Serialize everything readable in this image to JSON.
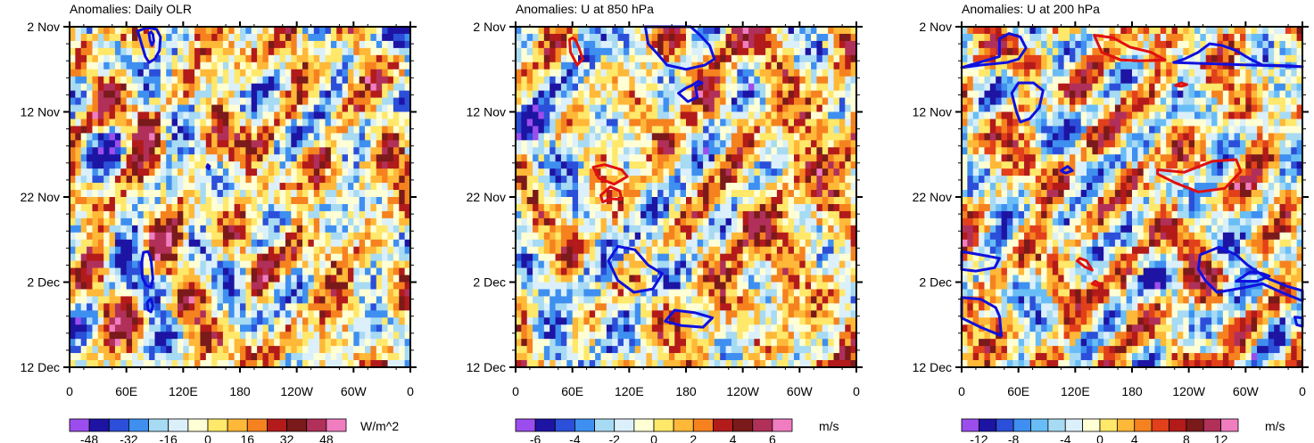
{
  "chart_data": [
    {
      "type": "heatmap",
      "title": "Anomalies: Daily OLR",
      "x_ticks": [
        "0",
        "60E",
        "120E",
        "180",
        "120W",
        "60W",
        "0"
      ],
      "y_ticks": [
        "2 Nov",
        "12 Nov",
        "22 Nov",
        "2 Dec",
        "12 Dec"
      ],
      "colorbar": {
        "ticks": [
          "-48",
          "-32",
          "-16",
          "0",
          "16",
          "32",
          "48"
        ],
        "units": "W/m^2",
        "levels": 14,
        "range": [
          -56,
          56
        ]
      },
      "contours": [
        {
          "color": "#1010dd",
          "points": [
            [
              72,
              0.5
            ],
            [
              76,
              2
            ],
            [
              80,
              3.5
            ],
            [
              84,
              4.2
            ],
            [
              90,
              3.8
            ],
            [
              95,
              2.8
            ],
            [
              96,
              1.2
            ],
            [
              92,
              0.3
            ],
            [
              82,
              0.1
            ]
          ]
        },
        {
          "color": "#1010dd",
          "points": [
            [
              84,
              0.8
            ],
            [
              85,
              1.6
            ],
            [
              87,
              2.2
            ],
            [
              89,
              1.7
            ],
            [
              88,
              0.9
            ],
            [
              86,
              0.6
            ]
          ]
        },
        {
          "color": "#1010dd",
          "points": [
            [
              78,
              26.5
            ],
            [
              76,
              27.8
            ],
            [
              77,
              29.5
            ],
            [
              81,
              30.4
            ],
            [
              86,
              30.6
            ],
            [
              88,
              29.6
            ],
            [
              86,
              27.3
            ],
            [
              83,
              26.4
            ]
          ]
        },
        {
          "color": "#1010dd",
          "points": [
            [
              82,
              32.4
            ],
            [
              83,
              33.3
            ],
            [
              86,
              33.5
            ],
            [
              88,
              32.8
            ],
            [
              86,
              32
            ],
            [
              84,
              32.1
            ]
          ]
        },
        {
          "color": "#1010dd",
          "points": [
            [
              145,
              16.5
            ],
            [
              147,
              16.7
            ],
            [
              148,
              16.4
            ],
            [
              146,
              16.2
            ]
          ]
        }
      ]
    },
    {
      "type": "heatmap",
      "title": "Anomalies: U at 850 hPa",
      "x_ticks": [
        "0",
        "60E",
        "120E",
        "180",
        "120W",
        "60W",
        "0"
      ],
      "y_ticks": [
        "2 Nov",
        "12 Nov",
        "22 Nov",
        "2 Dec",
        "12 Dec"
      ],
      "colorbar": {
        "ticks": [
          "-6",
          "-4",
          "-2",
          "0",
          "2",
          "4",
          "6"
        ],
        "units": "m/s",
        "levels": 14,
        "range": [
          -7,
          7
        ]
      },
      "contours": [
        {
          "color": "#e01010",
          "points": [
            [
              57,
              1.5
            ],
            [
              58,
              3
            ],
            [
              65,
              4.5
            ],
            [
              71,
              3.8
            ],
            [
              67,
              2.5
            ],
            [
              63,
              1.5
            ],
            [
              60,
              1.3
            ]
          ]
        },
        {
          "color": "#1010dd",
          "points": [
            [
              137,
              0
            ],
            [
              140,
              2
            ],
            [
              150,
              3.2
            ],
            [
              160,
              4.5
            ],
            [
              180,
              5
            ],
            [
              200,
              4.5
            ],
            [
              210,
              3.8
            ],
            [
              205,
              2.2
            ],
            [
              195,
              1
            ],
            [
              185,
              0
            ]
          ]
        },
        {
          "color": "#1010dd",
          "points": [
            [
              172,
              7.8
            ],
            [
              182,
              8.8
            ],
            [
              192,
              8.3
            ],
            [
              190,
              7
            ],
            [
              197,
              6.6
            ],
            [
              193,
              6.4
            ],
            [
              186,
              6.9
            ],
            [
              180,
              7.2
            ]
          ]
        },
        {
          "color": "#e01010",
          "points": [
            [
              82,
              16.5
            ],
            [
              88,
              17.8
            ],
            [
              104,
              18.5
            ],
            [
              118,
              17.6
            ],
            [
              112,
              16.8
            ],
            [
              94,
              16.2
            ]
          ]
        },
        {
          "color": "#e01010",
          "points": [
            [
              90,
              19.8
            ],
            [
              100,
              18.8
            ],
            [
              110,
              19.3
            ],
            [
              112,
              20.3
            ],
            [
              100,
              20.2
            ],
            [
              92,
              20.6
            ]
          ]
        },
        {
          "color": "#1010dd",
          "points": [
            [
              98,
              27.5
            ],
            [
              108,
              25.8
            ],
            [
              126,
              26.2
            ],
            [
              140,
              28
            ],
            [
              155,
              29
            ],
            [
              145,
              30.8
            ],
            [
              125,
              31.2
            ],
            [
              108,
              29.8
            ]
          ]
        },
        {
          "color": "#1010dd",
          "points": [
            [
              158,
              34.6
            ],
            [
              168,
              33.3
            ],
            [
              190,
              33.6
            ],
            [
              208,
              34.2
            ],
            [
              198,
              35.3
            ],
            [
              175,
              35.1
            ]
          ]
        }
      ]
    },
    {
      "type": "heatmap",
      "title": "Anomalies: U at 200 hPa",
      "x_ticks": [
        "0",
        "60E",
        "120E",
        "180",
        "120W",
        "60W",
        "0"
      ],
      "y_ticks": [
        "2 Nov",
        "12 Nov",
        "22 Nov",
        "2 Dec",
        "12 Dec"
      ],
      "colorbar": {
        "ticks": [
          "-12",
          "-8",
          "-4",
          "0",
          "4",
          "8",
          "12"
        ],
        "units": "m/s",
        "levels": 16,
        "range": [
          -16,
          16
        ]
      },
      "contours": [
        {
          "color": "#1010dd",
          "points": [
            [
              0,
              4.8
            ],
            [
              20,
              4.5
            ],
            [
              48,
              4.2
            ],
            [
              60,
              3.8
            ],
            [
              68,
              2.5
            ],
            [
              62,
              1.2
            ],
            [
              50,
              0.8
            ],
            [
              40,
              1.4
            ],
            [
              40,
              3.5
            ]
          ]
        },
        {
          "color": "#1010dd",
          "points": [
            [
              53,
              7.8
            ],
            [
              58,
              10
            ],
            [
              62,
              11.2
            ],
            [
              72,
              10.8
            ],
            [
              82,
              9.5
            ],
            [
              86,
              7.5
            ],
            [
              76,
              6.6
            ],
            [
              60,
              6.6
            ]
          ]
        },
        {
          "color": "#1010dd",
          "points": [
            [
              224,
              4.2
            ],
            [
              235,
              3.8
            ],
            [
              250,
              3
            ],
            [
              262,
              2
            ],
            [
              275,
              2.2
            ],
            [
              290,
              2.8
            ],
            [
              305,
              3.8
            ],
            [
              318,
              4.5
            ],
            [
              348,
              4.6
            ],
            [
              360,
              4.7
            ]
          ]
        },
        {
          "color": "#e01010",
          "points": [
            [
              140,
              1
            ],
            [
              148,
              3
            ],
            [
              168,
              3.9
            ],
            [
              188,
              4
            ],
            [
              215,
              3.9
            ],
            [
              200,
              3
            ],
            [
              178,
              2.4
            ],
            [
              160,
              1.3
            ]
          ]
        },
        {
          "color": "#e01010",
          "points": [
            [
              226,
              6.9
            ],
            [
              232,
              6.6
            ],
            [
              238,
              6.8
            ],
            [
              232,
              7
            ]
          ]
        },
        {
          "color": "#e01010",
          "points": [
            [
              207,
              16.8
            ],
            [
              235,
              17.1
            ],
            [
              265,
              15.8
            ],
            [
              290,
              15.6
            ],
            [
              295,
              17
            ],
            [
              278,
              19
            ],
            [
              250,
              19.4
            ],
            [
              225,
              18.3
            ],
            [
              207,
              17.3
            ]
          ]
        },
        {
          "color": "#1010dd",
          "points": [
            [
              105,
              16.9
            ],
            [
              110,
              17.2
            ],
            [
              117,
              16.9
            ],
            [
              112,
              16.4
            ]
          ]
        },
        {
          "color": "#1010dd",
          "points": [
            [
              0,
              26.4
            ],
            [
              20,
              26.8
            ],
            [
              40,
              27.2
            ],
            [
              35,
              28.3
            ],
            [
              15,
              28.7
            ],
            [
              0,
              28.5
            ]
          ]
        },
        {
          "color": "#e01010",
          "points": [
            [
              122,
              27.5
            ],
            [
              130,
              28.2
            ],
            [
              138,
              28.6
            ],
            [
              132,
              27.5
            ],
            [
              125,
              27.2
            ]
          ]
        },
        {
          "color": "#e01010",
          "points": [
            [
              138,
              30.2
            ],
            [
              143,
              30.4
            ],
            [
              146,
              30.2
            ],
            [
              141,
              29.9
            ]
          ]
        },
        {
          "color": "#1010dd",
          "points": [
            [
              0,
              31.8
            ],
            [
              20,
              32
            ],
            [
              36,
              33
            ],
            [
              40,
              34
            ],
            [
              42,
              36.3
            ],
            [
              20,
              35.3
            ],
            [
              0,
              34.2
            ]
          ]
        },
        {
          "color": "#1010dd",
          "points": [
            [
              252,
              26.8
            ],
            [
              272,
              25.9
            ],
            [
              290,
              26.8
            ],
            [
              302,
              28
            ],
            [
              322,
              29.5
            ],
            [
              344,
              30.5
            ],
            [
              360,
              31
            ],
            [
              360,
              32.2
            ],
            [
              338,
              31.2
            ],
            [
              318,
              30.2
            ],
            [
              296,
              30.7
            ],
            [
              270,
              31.2
            ],
            [
              258,
              29.9
            ],
            [
              250,
              28.5
            ]
          ]
        },
        {
          "color": "#1010dd",
          "points": [
            [
              290,
              29.9
            ],
            [
              305,
              28.8
            ],
            [
              318,
              29
            ],
            [
              325,
              29.3
            ],
            [
              312,
              29.9
            ]
          ]
        },
        {
          "color": "#1010dd",
          "points": [
            [
              352,
              34.1
            ],
            [
              360,
              34.2
            ],
            [
              360,
              35.2
            ],
            [
              354,
              35
            ]
          ]
        }
      ]
    }
  ]
}
